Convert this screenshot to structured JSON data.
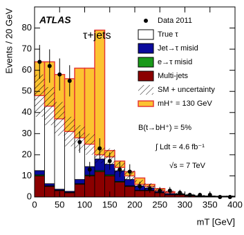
{
  "chart_data": {
    "type": "histogram",
    "x_label": "mT [GeV]",
    "y_label": "Events / 20 GeV",
    "bins": [
      0,
      20,
      40,
      60,
      80,
      100,
      120,
      140,
      160,
      180,
      200,
      220,
      240,
      260,
      280,
      300,
      320,
      340,
      360,
      380,
      400
    ],
    "xlim": [
      0,
      400
    ],
    "ylim": [
      0,
      90
    ],
    "xticks": [
      0,
      50,
      100,
      150,
      200,
      250,
      300,
      350,
      400
    ],
    "yticks": [
      0,
      10,
      20,
      30,
      40,
      50,
      60,
      70,
      80
    ],
    "series": [
      {
        "name": "Multi-jets",
        "color": "#8b0000",
        "values": [
          10,
          5,
          3,
          2,
          6,
          10,
          12,
          10,
          7,
          5,
          3,
          3,
          2,
          1,
          1,
          0.5,
          0.3,
          0.3,
          0.3,
          0.3
        ]
      },
      {
        "name": "e→τ misid",
        "color": "#1a9a1a",
        "values": [
          0.5,
          0.3,
          0.2,
          0.2,
          0.3,
          0.4,
          0.5,
          0.5,
          0.4,
          0.3,
          0.2,
          0.2,
          0.1,
          0.1,
          0.1,
          0.1,
          0,
          0,
          0,
          0
        ]
      },
      {
        "name": "Jet→τ misid",
        "color": "#0a0a9c",
        "values": [
          2,
          1,
          0.5,
          0.5,
          2,
          4,
          5.5,
          5,
          5,
          3,
          2,
          1,
          0.5,
          0.5,
          0.3,
          0.2,
          0.1,
          0.1,
          0,
          0
        ]
      },
      {
        "name": "True τ",
        "color": "#ffffff",
        "values": [
          35.5,
          36.7,
          33.3,
          28.3,
          19.7,
          10.6,
          2,
          3.5,
          1.6,
          1.7,
          0.8,
          0.8,
          0.4,
          0.4,
          0.1,
          0.2,
          0.2,
          0.1,
          0.1,
          0.1
        ]
      },
      {
        "name": "mH⁺ = 130 GeV",
        "color": "#fcc331",
        "values": [
          16,
          21,
          21,
          25,
          33,
          36,
          59,
          3,
          3,
          2,
          3,
          1,
          1,
          0.5,
          0,
          0,
          0,
          0,
          0,
          0
        ]
      }
    ],
    "uncertainty": {
      "name": "SM + uncertainty",
      "values": [
        10,
        9,
        8,
        7,
        6,
        5,
        4,
        4,
        3,
        2.5,
        2,
        1.5,
        1,
        1,
        0.6,
        0.5,
        0.4,
        0.3,
        0.3,
        0.3
      ]
    },
    "data": {
      "name": "Data 2011",
      "color": "#000000",
      "values": [
        64,
        62,
        58,
        55,
        26,
        13,
        23,
        17,
        13,
        12,
        5,
        4,
        3,
        3,
        2,
        1,
        1,
        1,
        0,
        0
      ],
      "errors": [
        8,
        7.9,
        7.6,
        7.4,
        5.1,
        3.6,
        4.8,
        4.1,
        3.6,
        3.5,
        2.2,
        2,
        1.7,
        1.7,
        1.4,
        1,
        1,
        1,
        0,
        0
      ]
    },
    "annotations": [
      "ATLAS",
      "τ+jets",
      "B(t→bH⁺) = 5%",
      "∫ Ldt = 4.6 fb⁻¹",
      "√s = 7 TeV"
    ]
  }
}
